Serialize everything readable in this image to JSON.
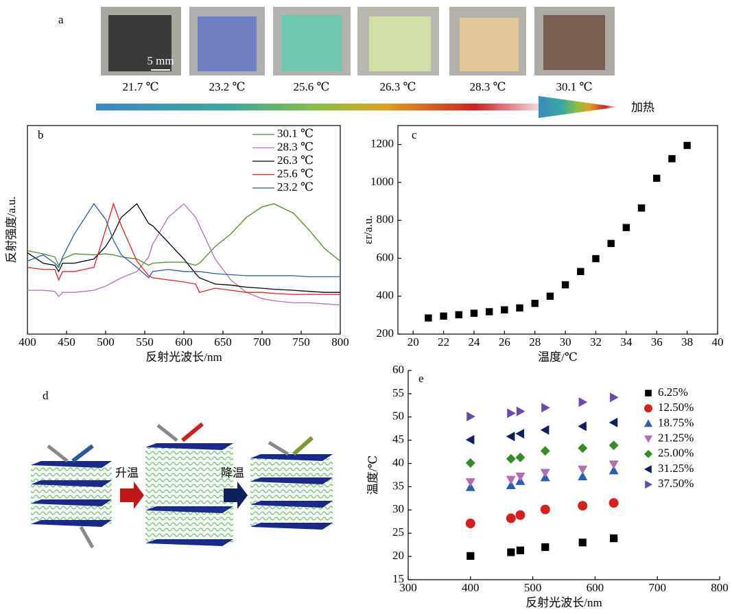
{
  "panel_a": {
    "label": "a",
    "scale_bar": "5 mm",
    "photos": [
      "21.7 ℃",
      "23.2 ℃",
      "25.6 ℃",
      "26.3 ℃",
      "28.3 ℃",
      "30.1 ℃"
    ],
    "arrow_label": "加热"
  },
  "panel_d": {
    "label": "d",
    "heat": "升温",
    "cool": "降温"
  },
  "chart_data": [
    {
      "type": "line",
      "panel_label": "b",
      "xlabel": "反射光波长/nm",
      "ylabel": "反射强度/a.u.",
      "x": [
        400,
        420,
        435,
        440,
        445,
        460,
        485,
        500,
        510,
        520,
        540,
        555,
        560,
        580,
        600,
        615,
        620,
        640,
        660,
        680,
        700,
        715,
        740,
        760,
        780,
        800
      ],
      "xlim": [
        400,
        800
      ],
      "xticks": [
        400,
        450,
        500,
        550,
        600,
        650,
        700,
        750,
        800
      ],
      "ylim": [
        0,
        1
      ],
      "series": [
        {
          "name": "30.1 ℃",
          "color": "#4a8a2a",
          "values": [
            0.4,
            0.385,
            0.37,
            0.33,
            0.36,
            0.385,
            0.38,
            0.385,
            0.38,
            0.37,
            0.36,
            0.33,
            0.34,
            0.345,
            0.345,
            0.33,
            0.34,
            0.42,
            0.48,
            0.56,
            0.61,
            0.625,
            0.58,
            0.5,
            0.41,
            0.35
          ]
        },
        {
          "name": "28.3 ℃",
          "color": "#b070b0",
          "values": [
            0.21,
            0.21,
            0.205,
            0.18,
            0.2,
            0.2,
            0.21,
            0.23,
            0.25,
            0.27,
            0.3,
            0.37,
            0.43,
            0.56,
            0.625,
            0.56,
            0.52,
            0.36,
            0.26,
            0.2,
            0.17,
            0.16,
            0.15,
            0.15,
            0.145,
            0.14
          ]
        },
        {
          "name": "26.3 ℃",
          "color": "#000000",
          "values": [
            0.39,
            0.34,
            0.33,
            0.3,
            0.34,
            0.34,
            0.36,
            0.42,
            0.48,
            0.56,
            0.625,
            0.53,
            0.52,
            0.44,
            0.36,
            0.29,
            0.27,
            0.24,
            0.235,
            0.225,
            0.22,
            0.215,
            0.21,
            0.205,
            0.2,
            0.2
          ]
        },
        {
          "name": "25.6 ℃",
          "color": "#e02020",
          "values": [
            0.32,
            0.31,
            0.31,
            0.26,
            0.3,
            0.3,
            0.32,
            0.5,
            0.625,
            0.52,
            0.35,
            0.28,
            0.27,
            0.26,
            0.25,
            0.24,
            0.2,
            0.22,
            0.21,
            0.2,
            0.2,
            0.195,
            0.19,
            0.19,
            0.19,
            0.19
          ]
        },
        {
          "name": "23.2 ℃",
          "color": "#2a5aa8",
          "values": [
            0.35,
            0.38,
            0.34,
            0.32,
            0.37,
            0.48,
            0.625,
            0.55,
            0.45,
            0.38,
            0.32,
            0.27,
            0.3,
            0.31,
            0.3,
            0.3,
            0.3,
            0.29,
            0.285,
            0.28,
            0.28,
            0.28,
            0.28,
            0.275,
            0.275,
            0.275
          ]
        }
      ]
    },
    {
      "type": "scatter",
      "panel_label": "c",
      "xlabel": "温度/℃",
      "ylabel": "εr/a.u.",
      "x": [
        21,
        22,
        23,
        24,
        25,
        26,
        27,
        28,
        29,
        30,
        31,
        32,
        33,
        34,
        35,
        36,
        37,
        38
      ],
      "values": [
        285,
        295,
        302,
        310,
        318,
        328,
        338,
        362,
        400,
        460,
        530,
        598,
        678,
        762,
        865,
        1022,
        1125,
        1195
      ],
      "color": "#000000",
      "marker": "square",
      "xlim": [
        19,
        40
      ],
      "xticks": [
        20,
        22,
        24,
        26,
        28,
        30,
        32,
        34,
        36,
        38,
        40
      ],
      "ylim": [
        200,
        1300
      ],
      "yticks": [
        200,
        400,
        600,
        800,
        1000,
        1200
      ]
    },
    {
      "type": "scatter",
      "panel_label": "e",
      "xlabel": "反射光波长/nm",
      "ylabel": "温度/℃",
      "x": [
        400,
        465,
        480,
        520,
        580,
        630
      ],
      "xlim": [
        300,
        800
      ],
      "xticks": [
        300,
        400,
        500,
        600,
        700,
        800
      ],
      "ylim": [
        15,
        60
      ],
      "yticks": [
        15,
        20,
        25,
        30,
        35,
        40,
        45,
        50,
        55,
        60
      ],
      "series": [
        {
          "name": "6.25%",
          "color": "#000000",
          "marker": "square",
          "values": [
            20.1,
            20.9,
            21.3,
            22,
            23,
            23.9
          ]
        },
        {
          "name": "12.50%",
          "color": "#d62020",
          "marker": "circle",
          "values": [
            27.1,
            28.2,
            28.9,
            30.1,
            30.9,
            31.5
          ]
        },
        {
          "name": "18.75%",
          "color": "#2a5fb0",
          "marker": "triangle-up",
          "values": [
            34.9,
            35.3,
            36.2,
            37,
            37.2,
            38.5
          ]
        },
        {
          "name": "21.25%",
          "color": "#b070b0",
          "marker": "triangle-down",
          "values": [
            36,
            36.5,
            37.2,
            38,
            38.7,
            39.8
          ]
        },
        {
          "name": "25.00%",
          "color": "#3a8a2a",
          "marker": "diamond",
          "values": [
            40.1,
            41,
            41.3,
            42.7,
            43.3,
            43.9
          ]
        },
        {
          "name": "31.25%",
          "color": "#10205a",
          "marker": "triangle-left",
          "values": [
            45.1,
            45.8,
            46.4,
            47.2,
            48,
            48.8
          ]
        },
        {
          "name": "37.50%",
          "color": "#6a4aa8",
          "marker": "triangle-right",
          "values": [
            50.1,
            50.8,
            51.2,
            52,
            53.2,
            54.2
          ]
        }
      ]
    }
  ]
}
